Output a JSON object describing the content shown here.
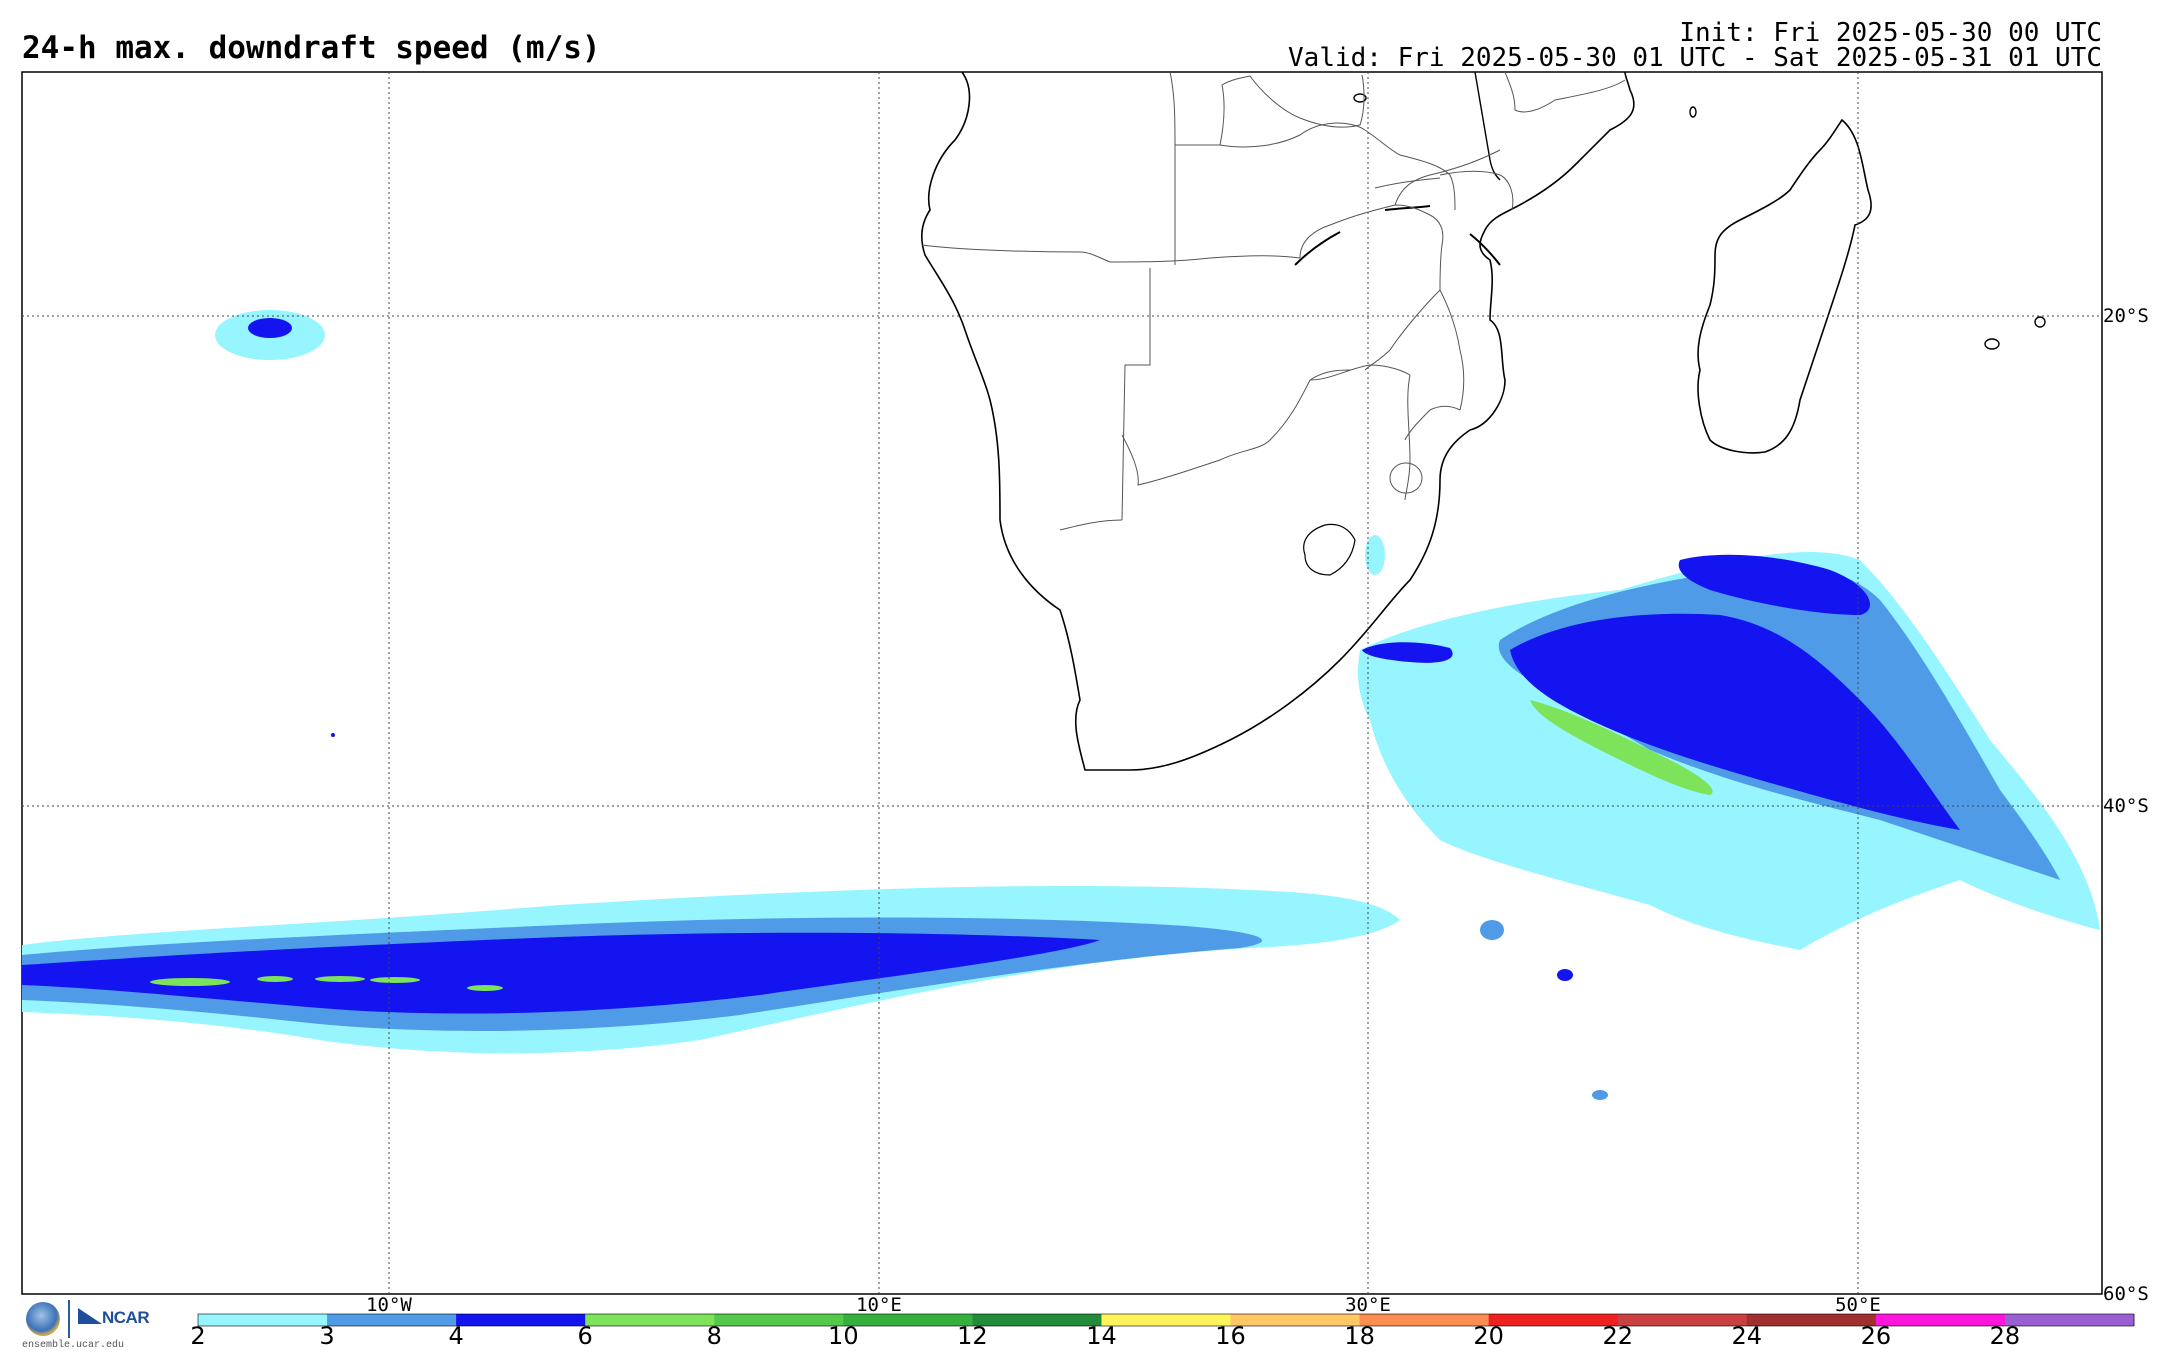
{
  "header": {
    "title": "24-h max. downdraft speed (m/s)",
    "init": "Init: Fri 2025-05-30 00 UTC",
    "valid": "Valid: Fri 2025-05-30 01 UTC - Sat 2025-05-31 01 UTC"
  },
  "map": {
    "lat_labels": [
      "20°S",
      "40°S",
      "60°S"
    ],
    "lon_labels": [
      "10°W",
      "10°E",
      "30°E",
      "50°E"
    ],
    "colors": {
      "coast": "#000000",
      "border": "#555555",
      "grid": "#444444"
    }
  },
  "colorbar": {
    "tick_labels": [
      "2",
      "3",
      "4",
      "6",
      "8",
      "10",
      "12",
      "14",
      "16",
      "18",
      "20",
      "22",
      "24",
      "26",
      "28"
    ],
    "colors": [
      "#96f5ff",
      "#4f9be8",
      "#1414f0",
      "#7de35a",
      "#55c94a",
      "#36b03c",
      "#228c3a",
      "#fff55a",
      "#ffc864",
      "#ff8c50",
      "#f02020",
      "#c84040",
      "#a03030",
      "#ff14dc",
      "#9a5fd0"
    ]
  },
  "logos": {
    "nsf": "NSF",
    "ncar": "NCAR",
    "url": "ensemble.ucar.edu"
  }
}
